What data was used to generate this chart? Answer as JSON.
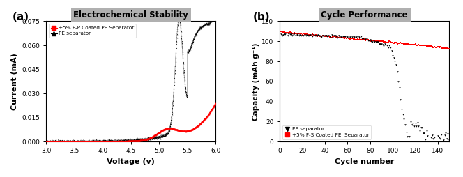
{
  "panel_a": {
    "title": "Electrochemical Stability",
    "xlabel": "Voltage (v)",
    "ylabel": "Current (mA)",
    "xlim": [
      3.0,
      6.0
    ],
    "ylim": [
      0.0,
      0.075
    ],
    "yticks": [
      0.0,
      0.015,
      0.03,
      0.045,
      0.06,
      0.075
    ],
    "ytick_labels": [
      "0.000",
      "0.015",
      "0.030",
      "0.045",
      "0.060",
      "0.075"
    ],
    "xticks": [
      3.0,
      3.5,
      4.0,
      4.5,
      5.0,
      5.5,
      6.0
    ],
    "xtick_labels": [
      "3.0",
      "3.5",
      "4.0",
      "4.5",
      "5.0",
      "5.5",
      "6.0"
    ],
    "legend_labels": [
      "+5% F-P Coated PE Separator",
      "PE separator"
    ],
    "legend_colors": [
      "red",
      "black"
    ],
    "legend_markers": [
      "s",
      "^"
    ]
  },
  "panel_b": {
    "title": "Cycle Performance",
    "xlabel": "Cycle number",
    "ylabel": "Capacity (mAh g⁻¹)",
    "xlim": [
      0,
      150
    ],
    "ylim": [
      0,
      120
    ],
    "yticks": [
      0,
      20,
      40,
      60,
      80,
      100,
      120
    ],
    "xticks": [
      0,
      20,
      40,
      60,
      80,
      100,
      120,
      140
    ],
    "legend_labels": [
      "PE separator",
      "+5% F-S Coated PE  Separator"
    ],
    "legend_colors": [
      "black",
      "red"
    ],
    "legend_markers": [
      "v",
      "s"
    ]
  },
  "label_a": "(a)",
  "label_b": "(b)",
  "title_box_color": "#b0b0b0",
  "fig_width": 6.64,
  "fig_height": 2.54,
  "fig_dpi": 100
}
